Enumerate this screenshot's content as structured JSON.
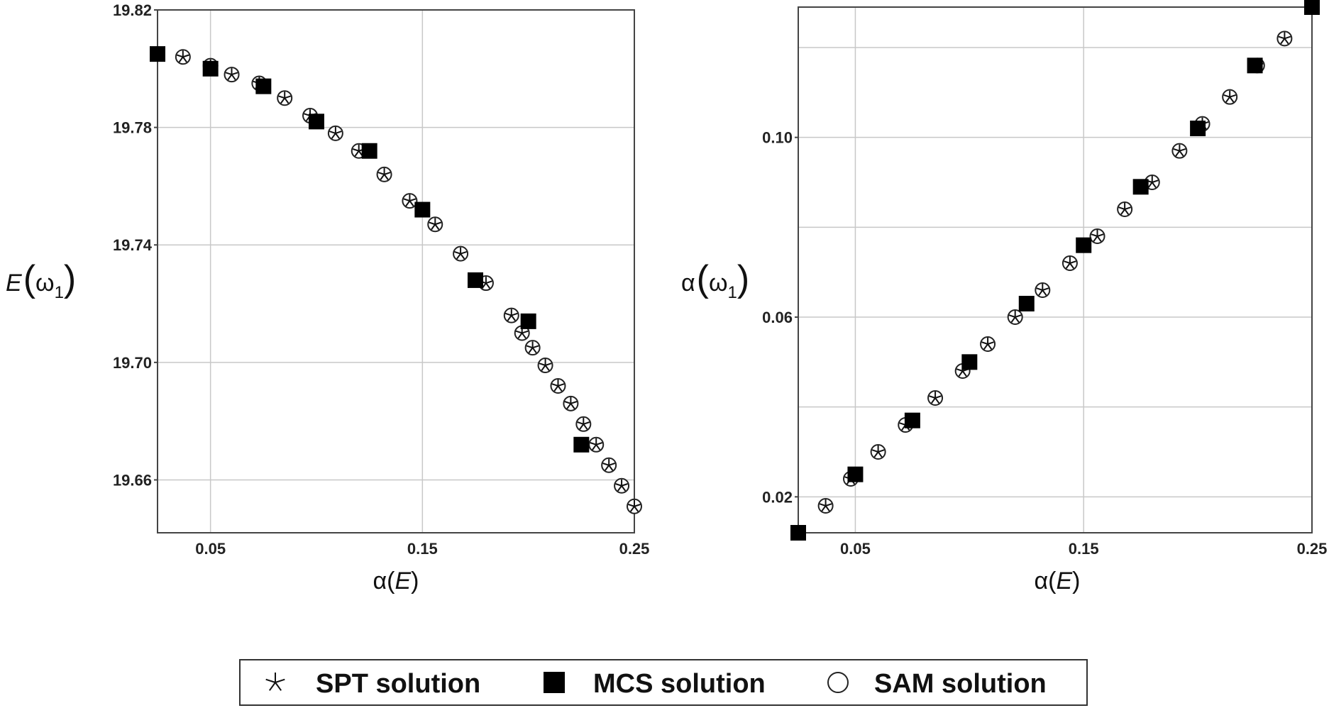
{
  "chart_data": [
    {
      "type": "scatter",
      "panel": "left",
      "xlabel_func": "α",
      "xlabel_var": "E",
      "ylabel_func": "E",
      "ylabel_var": "ω",
      "ylabel_sub": "1",
      "xlim": [
        0.025,
        0.25
      ],
      "ylim": [
        19.642,
        19.82
      ],
      "xticks": [
        0.05,
        0.15,
        0.25
      ],
      "xtick_labels": [
        "0.05",
        "0.15",
        "0.25"
      ],
      "yticks": [
        19.66,
        19.7,
        19.74,
        19.78,
        19.82
      ],
      "ytick_labels": [
        "19.66",
        "19.70",
        "19.74",
        "19.78",
        "19.82"
      ],
      "grid": true,
      "series": [
        {
          "name": "SPT solution",
          "marker": "star",
          "x": [
            0.025,
            0.037,
            0.05,
            0.06,
            0.073,
            0.085,
            0.097,
            0.109,
            0.12,
            0.132,
            0.144,
            0.156,
            0.168,
            0.18,
            0.192,
            0.197,
            0.202,
            0.208,
            0.214,
            0.22,
            0.226,
            0.232,
            0.238,
            0.244,
            0.25
          ],
          "y": [
            19.805,
            19.804,
            19.801,
            19.798,
            19.795,
            19.79,
            19.784,
            19.778,
            19.772,
            19.764,
            19.755,
            19.747,
            19.737,
            19.727,
            19.716,
            19.71,
            19.705,
            19.699,
            19.692,
            19.686,
            19.679,
            19.672,
            19.665,
            19.658,
            19.651
          ]
        },
        {
          "name": "MCS solution",
          "marker": "square",
          "x": [
            0.025,
            0.05,
            0.075,
            0.1,
            0.125,
            0.15,
            0.175,
            0.2,
            0.225
          ],
          "y": [
            19.805,
            19.8,
            19.794,
            19.782,
            19.772,
            19.752,
            19.728,
            19.714,
            19.672
          ]
        },
        {
          "name": "SAM solution",
          "marker": "circle",
          "x": [
            0.025,
            0.037,
            0.05,
            0.06,
            0.073,
            0.085,
            0.097,
            0.109,
            0.12,
            0.132,
            0.144,
            0.156,
            0.168,
            0.18,
            0.192,
            0.197,
            0.202,
            0.208,
            0.214,
            0.22,
            0.226,
            0.232,
            0.238,
            0.244,
            0.25
          ],
          "y": [
            19.805,
            19.804,
            19.801,
            19.798,
            19.795,
            19.79,
            19.784,
            19.778,
            19.772,
            19.764,
            19.755,
            19.747,
            19.737,
            19.727,
            19.716,
            19.71,
            19.705,
            19.699,
            19.692,
            19.686,
            19.679,
            19.672,
            19.665,
            19.658,
            19.651
          ]
        }
      ]
    },
    {
      "type": "scatter",
      "panel": "right",
      "xlabel_func": "α",
      "xlabel_var": "E",
      "ylabel_func": "α",
      "ylabel_var": "ω",
      "ylabel_sub": "1",
      "xlim": [
        0.025,
        0.25
      ],
      "ylim": [
        0.012,
        0.129
      ],
      "xticks": [
        0.05,
        0.15,
        0.25
      ],
      "xtick_labels": [
        "0.05",
        "0.15",
        "0.25"
      ],
      "yticks": [
        0.02,
        0.06,
        0.1
      ],
      "ytick_labels": [
        "0.02",
        "0.06",
        "0.10"
      ],
      "ygrid_extra": [
        0.04,
        0.08,
        0.12
      ],
      "grid": true,
      "series": [
        {
          "name": "SPT solution",
          "marker": "star",
          "x": [
            0.025,
            0.037,
            0.048,
            0.06,
            0.072,
            0.085,
            0.097,
            0.108,
            0.12,
            0.132,
            0.144,
            0.156,
            0.168,
            0.18,
            0.192,
            0.202,
            0.214,
            0.226,
            0.238,
            0.25
          ],
          "y": [
            0.012,
            0.018,
            0.024,
            0.03,
            0.036,
            0.042,
            0.048,
            0.054,
            0.06,
            0.066,
            0.072,
            0.078,
            0.084,
            0.09,
            0.097,
            0.103,
            0.109,
            0.116,
            0.122,
            0.129
          ]
        },
        {
          "name": "MCS solution",
          "marker": "square",
          "x": [
            0.025,
            0.05,
            0.075,
            0.1,
            0.125,
            0.15,
            0.175,
            0.2,
            0.225,
            0.25
          ],
          "y": [
            0.012,
            0.025,
            0.037,
            0.05,
            0.063,
            0.076,
            0.089,
            0.102,
            0.116,
            0.129
          ]
        },
        {
          "name": "SAM solution",
          "marker": "circle",
          "x": [
            0.025,
            0.037,
            0.048,
            0.06,
            0.072,
            0.085,
            0.097,
            0.108,
            0.12,
            0.132,
            0.144,
            0.156,
            0.168,
            0.18,
            0.192,
            0.202,
            0.214,
            0.226,
            0.238,
            0.25
          ],
          "y": [
            0.012,
            0.018,
            0.024,
            0.03,
            0.036,
            0.042,
            0.048,
            0.054,
            0.06,
            0.066,
            0.072,
            0.078,
            0.084,
            0.09,
            0.097,
            0.103,
            0.109,
            0.116,
            0.122,
            0.129
          ]
        }
      ]
    }
  ],
  "legend": {
    "items": [
      {
        "marker": "star",
        "label": "SPT solution"
      },
      {
        "marker": "square",
        "label": "MCS solution"
      },
      {
        "marker": "circle",
        "label": "SAM solution"
      }
    ]
  }
}
